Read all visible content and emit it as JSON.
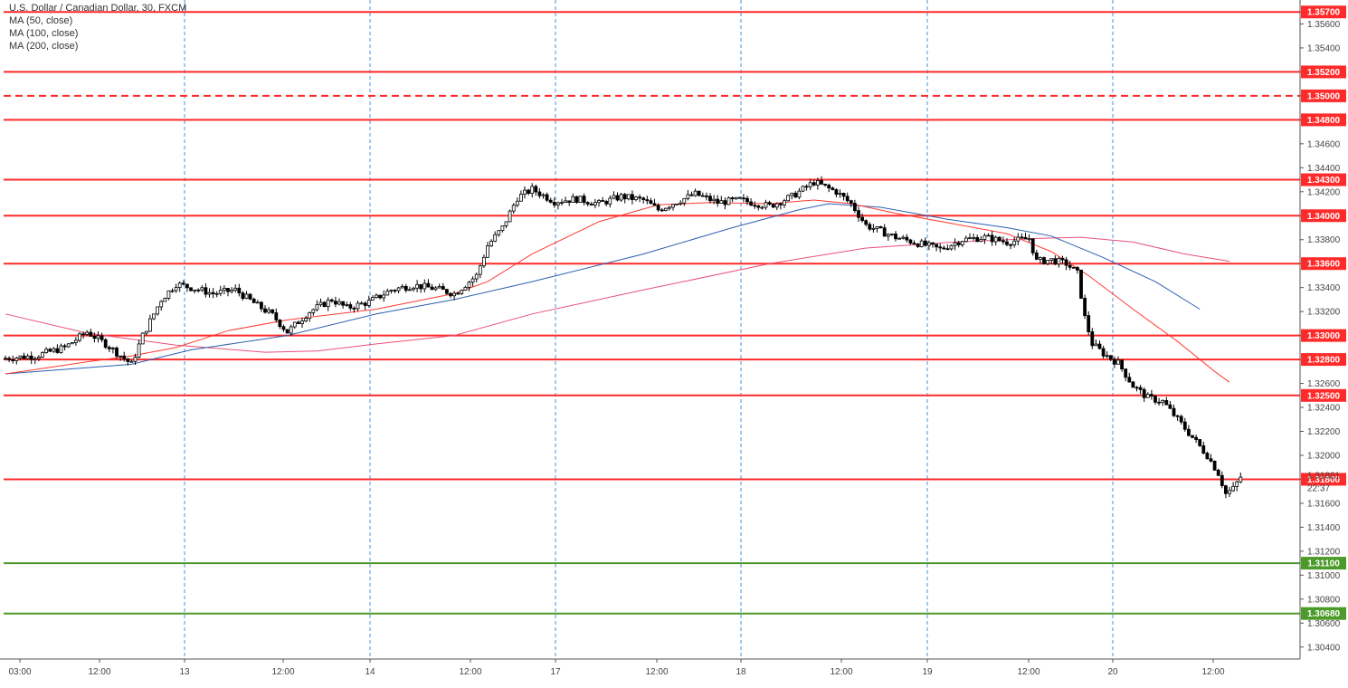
{
  "chart_data": {
    "type": "candlestick",
    "title": "U.S. Dollar / Canadian Dollar, 30, FXCM",
    "legend": [
      "MA (50, close)",
      "MA (100, close)",
      "MA (200, close)"
    ],
    "ylim": [
      1.303,
      1.358
    ],
    "y_ticks": [
      "1.30400",
      "1.30600",
      "1.30800",
      "1.31000",
      "1.31200",
      "1.31400",
      "1.31600",
      "1.31800",
      "1.32000",
      "1.32200",
      "1.32400",
      "1.32600",
      "1.32800",
      "1.33000",
      "1.33200",
      "1.33400",
      "1.33600",
      "1.33800",
      "1.34000",
      "1.34200",
      "1.34400",
      "1.34600",
      "1.34800",
      "1.35000",
      "1.35200",
      "1.35400",
      "1.35600",
      "1.35700"
    ],
    "x_labels": [
      "03:00",
      "12:00",
      "13",
      "12:00",
      "14",
      "12:00",
      "17",
      "12:00",
      "18",
      "12:00",
      "19",
      "12:00",
      "20",
      "12:00"
    ],
    "day_separators": [
      "13",
      "14",
      "17",
      "18",
      "19",
      "20"
    ],
    "last_price": "1.31821",
    "countdown": "22:37",
    "resistance_levels": [
      {
        "value": 1.357,
        "label": "1.35700",
        "style": "solid"
      },
      {
        "value": 1.352,
        "label": "1.35200",
        "style": "solid"
      },
      {
        "value": 1.35,
        "label": "1.35000",
        "style": "dashed"
      },
      {
        "value": 1.348,
        "label": "1.34800",
        "style": "solid"
      },
      {
        "value": 1.343,
        "label": "1.34300",
        "style": "solid"
      },
      {
        "value": 1.34,
        "label": "1.34000",
        "style": "solid"
      },
      {
        "value": 1.336,
        "label": "1.33600",
        "style": "solid"
      },
      {
        "value": 1.33,
        "label": "1.33000",
        "style": "solid"
      },
      {
        "value": 1.328,
        "label": "1.32800",
        "style": "solid"
      },
      {
        "value": 1.325,
        "label": "1.32500",
        "style": "solid"
      },
      {
        "value": 1.318,
        "label": "1.31800",
        "style": "solid"
      }
    ],
    "support_levels": [
      {
        "value": 1.311,
        "label": "1.31100"
      },
      {
        "value": 1.3068,
        "label": "1.30680"
      }
    ],
    "price_path": [
      [
        0,
        1.3281
      ],
      [
        8,
        1.3283
      ],
      [
        16,
        1.329
      ],
      [
        22,
        1.3303
      ],
      [
        27,
        1.3293
      ],
      [
        34,
        1.3276
      ],
      [
        37,
        1.33
      ],
      [
        42,
        1.333
      ],
      [
        46,
        1.3343
      ],
      [
        50,
        1.334
      ],
      [
        56,
        1.3335
      ],
      [
        62,
        1.3338
      ],
      [
        68,
        1.3325
      ],
      [
        72,
        1.3317
      ],
      [
        76,
        1.3303
      ],
      [
        82,
        1.332
      ],
      [
        88,
        1.333
      ],
      [
        92,
        1.3323
      ],
      [
        98,
        1.3328
      ],
      [
        104,
        1.3338
      ],
      [
        110,
        1.3342
      ],
      [
        116,
        1.3339
      ],
      [
        121,
        1.3335
      ],
      [
        127,
        1.335
      ],
      [
        130,
        1.3375
      ],
      [
        134,
        1.339
      ],
      [
        138,
        1.3415
      ],
      [
        142,
        1.3422
      ],
      [
        148,
        1.3412
      ],
      [
        154,
        1.3414
      ],
      [
        160,
        1.341
      ],
      [
        166,
        1.3416
      ],
      [
        172,
        1.3413
      ],
      [
        176,
        1.3405
      ],
      [
        182,
        1.3413
      ],
      [
        186,
        1.3418
      ],
      [
        192,
        1.3411
      ],
      [
        198,
        1.3413
      ],
      [
        206,
        1.3408
      ],
      [
        212,
        1.3416
      ],
      [
        218,
        1.3428
      ],
      [
        224,
        1.342
      ],
      [
        228,
        1.341
      ],
      [
        232,
        1.3392
      ],
      [
        236,
        1.3387
      ],
      [
        240,
        1.3382
      ],
      [
        246,
        1.3377
      ],
      [
        252,
        1.3372
      ],
      [
        258,
        1.338
      ],
      [
        264,
        1.3382
      ],
      [
        270,
        1.3378
      ],
      [
        276,
        1.3381
      ],
      [
        278,
        1.3362
      ],
      [
        282,
        1.3363
      ],
      [
        286,
        1.336
      ],
      [
        289,
        1.3352
      ],
      [
        291,
        1.3315
      ],
      [
        293,
        1.3293
      ],
      [
        296,
        1.3285
      ],
      [
        300,
        1.3277
      ],
      [
        304,
        1.3258
      ],
      [
        308,
        1.3248
      ],
      [
        312,
        1.3245
      ],
      [
        316,
        1.323
      ],
      [
        320,
        1.3215
      ],
      [
        324,
        1.32
      ],
      [
        327,
        1.3185
      ],
      [
        329,
        1.3168
      ],
      [
        331,
        1.3172
      ],
      [
        333,
        1.3182
      ]
    ],
    "ma50": [
      [
        0,
        1.3268
      ],
      [
        22,
        1.3278
      ],
      [
        34,
        1.3283
      ],
      [
        46,
        1.329
      ],
      [
        60,
        1.3304
      ],
      [
        76,
        1.3313
      ],
      [
        100,
        1.3322
      ],
      [
        121,
        1.3335
      ],
      [
        130,
        1.3345
      ],
      [
        142,
        1.3368
      ],
      [
        160,
        1.3395
      ],
      [
        176,
        1.3409
      ],
      [
        190,
        1.3411
      ],
      [
        206,
        1.341
      ],
      [
        218,
        1.3413
      ],
      [
        228,
        1.341
      ],
      [
        240,
        1.3402
      ],
      [
        256,
        1.3393
      ],
      [
        270,
        1.3385
      ],
      [
        282,
        1.337
      ],
      [
        292,
        1.335
      ],
      [
        304,
        1.3322
      ],
      [
        316,
        1.3295
      ],
      [
        326,
        1.327
      ],
      [
        330,
        1.3261
      ]
    ],
    "ma100": [
      [
        0,
        1.3268
      ],
      [
        34,
        1.3276
      ],
      [
        50,
        1.3288
      ],
      [
        76,
        1.33
      ],
      [
        100,
        1.3318
      ],
      [
        121,
        1.333
      ],
      [
        142,
        1.3345
      ],
      [
        172,
        1.3368
      ],
      [
        196,
        1.339
      ],
      [
        214,
        1.3405
      ],
      [
        222,
        1.341
      ],
      [
        236,
        1.3407
      ],
      [
        254,
        1.3397
      ],
      [
        270,
        1.339
      ],
      [
        282,
        1.3383
      ],
      [
        296,
        1.3365
      ],
      [
        310,
        1.3345
      ],
      [
        322,
        1.3322
      ]
    ],
    "ma200": [
      [
        0,
        1.3318
      ],
      [
        22,
        1.3302
      ],
      [
        46,
        1.3292
      ],
      [
        70,
        1.3286
      ],
      [
        84,
        1.3287
      ],
      [
        100,
        1.3293
      ],
      [
        121,
        1.33
      ],
      [
        142,
        1.3318
      ],
      [
        172,
        1.3338
      ],
      [
        206,
        1.336
      ],
      [
        232,
        1.3373
      ],
      [
        256,
        1.3378
      ],
      [
        278,
        1.3381
      ],
      [
        290,
        1.3382
      ],
      [
        304,
        1.3378
      ],
      [
        318,
        1.3368
      ],
      [
        330,
        1.3362
      ]
    ],
    "colors": {
      "resistance": "#ff2a2a",
      "support": "#4c9a2a",
      "ma50": "#ff3b30",
      "ma100": "#2b5fb0",
      "ma200": "#e8507a",
      "candle": "#000000",
      "day_separator": "#4a90d9"
    }
  }
}
